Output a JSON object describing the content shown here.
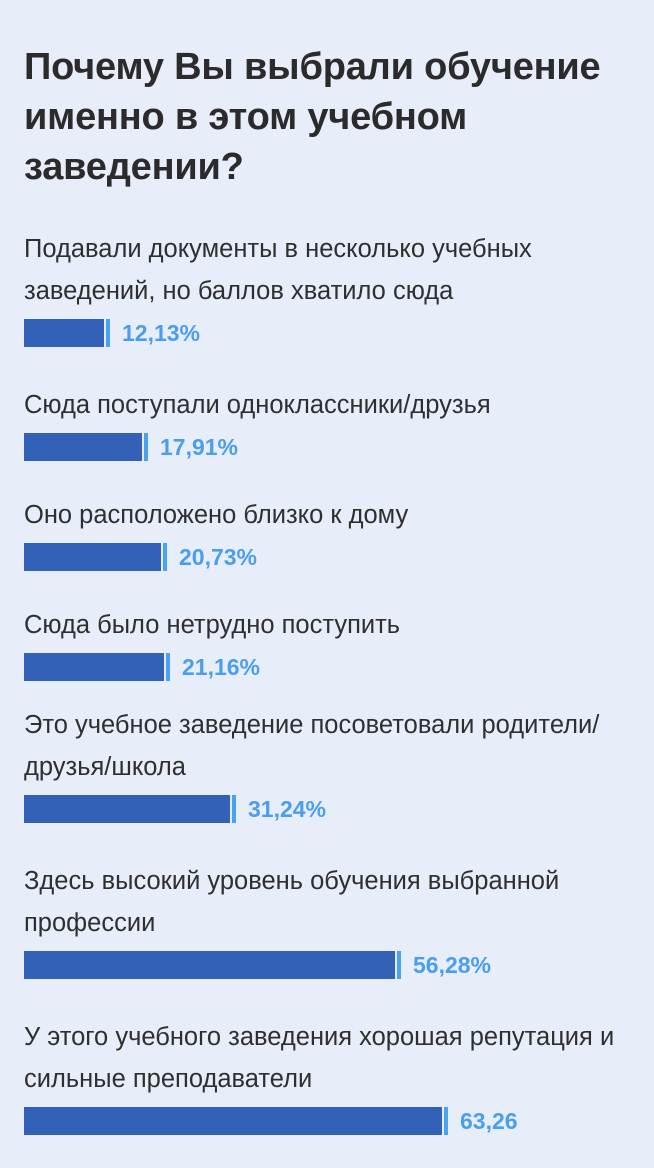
{
  "title": "Почему Вы выбрали обучение именно в этом учебном заведении?",
  "colors": {
    "background": "#e8edfa",
    "bar": "#3461b8",
    "bar_cap": "#4aa3f0",
    "value_text": "#4a9ef0",
    "label_text": "#2f2f2f"
  },
  "chart_data": {
    "type": "bar",
    "orientation": "horizontal",
    "title": "Почему Вы выбрали обучение именно в этом учебном заведении?",
    "categories": [
      "Подавали документы в несколько учебных заведений, но баллов хватило сюда",
      "Сюда поступали одноклассники/друзья",
      "Оно расположено близко к дому",
      "Сюда было нетрудно поступить",
      "Это учебное заведение посоветовали родители/друзья/школа",
      "Здесь высокий уровень обучения выбранной профессии",
      "У этого учебного заведения хорошая репутация и сильные преподаватели"
    ],
    "values": [
      12.13,
      17.91,
      20.73,
      21.16,
      31.24,
      56.28,
      63.26
    ],
    "value_labels": [
      "12,13%",
      "17,91%",
      "20,73%",
      "21,16%",
      "31,24%",
      "56,28%",
      "63,26"
    ],
    "unit": "%",
    "grid": false,
    "legend": "none"
  }
}
